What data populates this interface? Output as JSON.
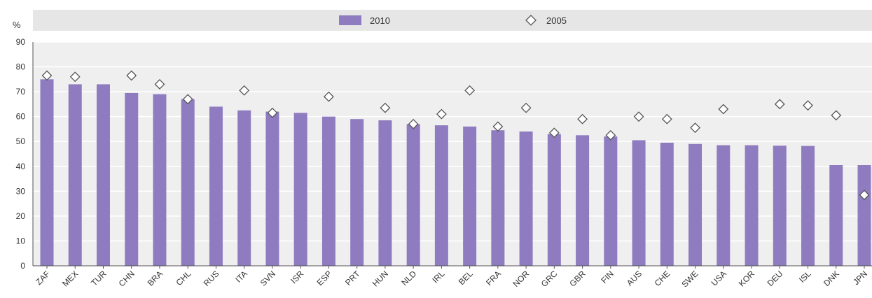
{
  "chart_data": {
    "type": "bar",
    "ylabel": "%",
    "ylim": [
      0,
      90
    ],
    "yticks": [
      0,
      10,
      20,
      30,
      40,
      50,
      60,
      70,
      80,
      90
    ],
    "grid": true,
    "legend_position": "top",
    "categories": [
      "ZAF",
      "MEX",
      "TUR",
      "CHN",
      "BRA",
      "CHL",
      "RUS",
      "ITA",
      "SVN",
      "ISR",
      "ESP",
      "PRT",
      "HUN",
      "NLD",
      "IRL",
      "BEL",
      "FRA",
      "NOR",
      "GRC",
      "GBR",
      "FIN",
      "AUS",
      "CHE",
      "SWE",
      "USA",
      "KOR",
      "DEU",
      "ISL",
      "DNK",
      "JPN"
    ],
    "series": [
      {
        "name": "2010",
        "type": "bar",
        "color": "#8f7cc0",
        "values": [
          75,
          73,
          73,
          69.5,
          69,
          67,
          64,
          62.5,
          62,
          61.5,
          60,
          59,
          58.5,
          57,
          56.5,
          56,
          54.5,
          54,
          53,
          52.5,
          52,
          50.5,
          49.5,
          49,
          48.5,
          48.5,
          48.3,
          48.2,
          40.5,
          40.5
        ]
      },
      {
        "name": "2005",
        "type": "marker",
        "marker": "diamond",
        "color": "#ffffff",
        "values": [
          76.5,
          76,
          null,
          76.5,
          73,
          67,
          null,
          70.5,
          61.5,
          null,
          68,
          null,
          63.5,
          57,
          61,
          70.5,
          56,
          63.5,
          53.5,
          59,
          52.5,
          60,
          59,
          55.5,
          63,
          null,
          65,
          64.5,
          60.5,
          28.5
        ]
      }
    ]
  },
  "legend": {
    "series1_label": "2010",
    "series2_label": "2005"
  }
}
